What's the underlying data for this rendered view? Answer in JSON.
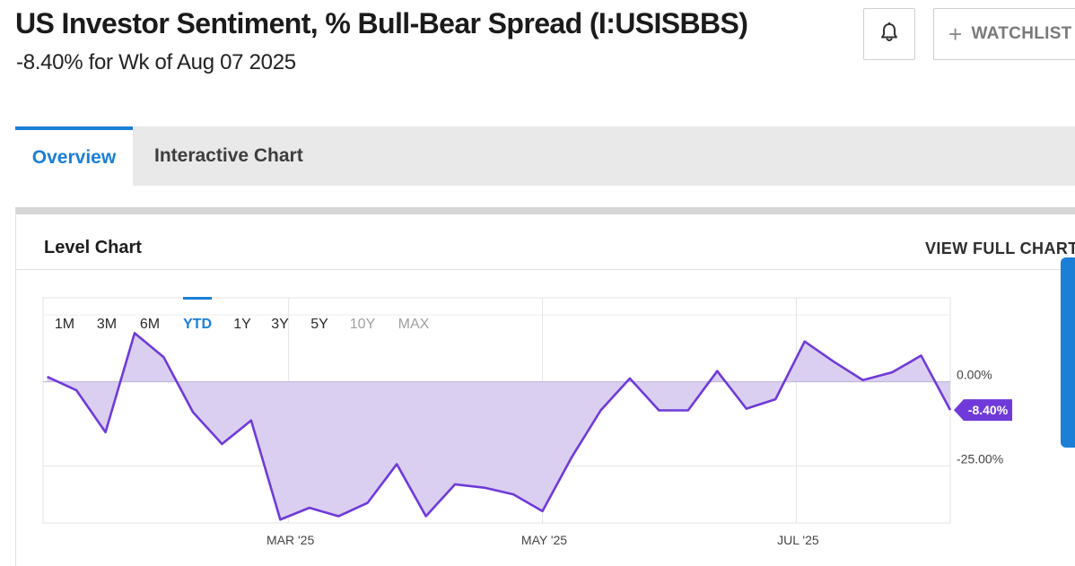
{
  "header": {
    "title": "US Investor Sentiment, % Bull-Bear Spread (I:USISBBS)",
    "subtitle": "-8.40% for Wk of Aug 07 2025",
    "watchlist_label": "WATCHLIST"
  },
  "tabs": [
    {
      "label": "Overview",
      "active": true
    },
    {
      "label": "Interactive Chart",
      "active": false
    }
  ],
  "panel": {
    "title": "Level Chart",
    "view_full_label": "VIEW FULL CHART"
  },
  "colors": {
    "accent": "#1b7fd6",
    "line": "#6f3ad9",
    "fill": "#d8ccef",
    "badge": "#6f3ad9"
  },
  "chart_data": {
    "type": "area",
    "ranges": [
      "1M",
      "3M",
      "6M",
      "YTD",
      "1Y",
      "3Y",
      "5Y",
      "10Y",
      "MAX"
    ],
    "active_range": "YTD",
    "disabled_ranges": [
      "10Y",
      "MAX"
    ],
    "x_ticks": [
      {
        "label": "MAR '25",
        "x": "2025-03-01"
      },
      {
        "label": "MAY '25",
        "x": "2025-05-01"
      },
      {
        "label": "JUL '25",
        "x": "2025-07-01"
      }
    ],
    "y_ticks": [
      {
        "label": "0.00%",
        "value": 0
      },
      {
        "label": "-25.00%",
        "value": -25
      }
    ],
    "ylim": [
      -42,
      25
    ],
    "xlim": [
      "2025-01-01",
      "2025-08-07"
    ],
    "baseline": 0,
    "last_value_label": "-8.40%",
    "grid": true,
    "series": [
      {
        "points": [
          {
            "x": "2025-01-02",
            "y": 1.5
          },
          {
            "x": "2025-01-09",
            "y": -2.5
          },
          {
            "x": "2025-01-16",
            "y": -15.0
          },
          {
            "x": "2025-01-23",
            "y": 14.5
          },
          {
            "x": "2025-01-30",
            "y": 7.3
          },
          {
            "x": "2025-02-06",
            "y": -9.0
          },
          {
            "x": "2025-02-13",
            "y": -18.5
          },
          {
            "x": "2025-02-20",
            "y": -11.5
          },
          {
            "x": "2025-02-27",
            "y": -41.0
          },
          {
            "x": "2025-03-06",
            "y": -37.5
          },
          {
            "x": "2025-03-13",
            "y": -40.0
          },
          {
            "x": "2025-03-20",
            "y": -36.0
          },
          {
            "x": "2025-03-27",
            "y": -24.5
          },
          {
            "x": "2025-04-03",
            "y": -40.0
          },
          {
            "x": "2025-04-10",
            "y": -30.5
          },
          {
            "x": "2025-04-17",
            "y": -31.5
          },
          {
            "x": "2025-04-24",
            "y": -33.5
          },
          {
            "x": "2025-05-01",
            "y": -38.5
          },
          {
            "x": "2025-05-08",
            "y": -22.5
          },
          {
            "x": "2025-05-15",
            "y": -8.5
          },
          {
            "x": "2025-05-22",
            "y": 1.0
          },
          {
            "x": "2025-05-29",
            "y": -8.5
          },
          {
            "x": "2025-06-05",
            "y": -8.5
          },
          {
            "x": "2025-06-12",
            "y": 3.2
          },
          {
            "x": "2025-06-19",
            "y": -8.0
          },
          {
            "x": "2025-06-26",
            "y": -5.2
          },
          {
            "x": "2025-07-03",
            "y": 12.0
          },
          {
            "x": "2025-07-10",
            "y": 6.0
          },
          {
            "x": "2025-07-17",
            "y": 0.5
          },
          {
            "x": "2025-07-24",
            "y": 2.8
          },
          {
            "x": "2025-07-31",
            "y": 7.8
          },
          {
            "x": "2025-08-07",
            "y": -8.4
          }
        ]
      }
    ]
  }
}
